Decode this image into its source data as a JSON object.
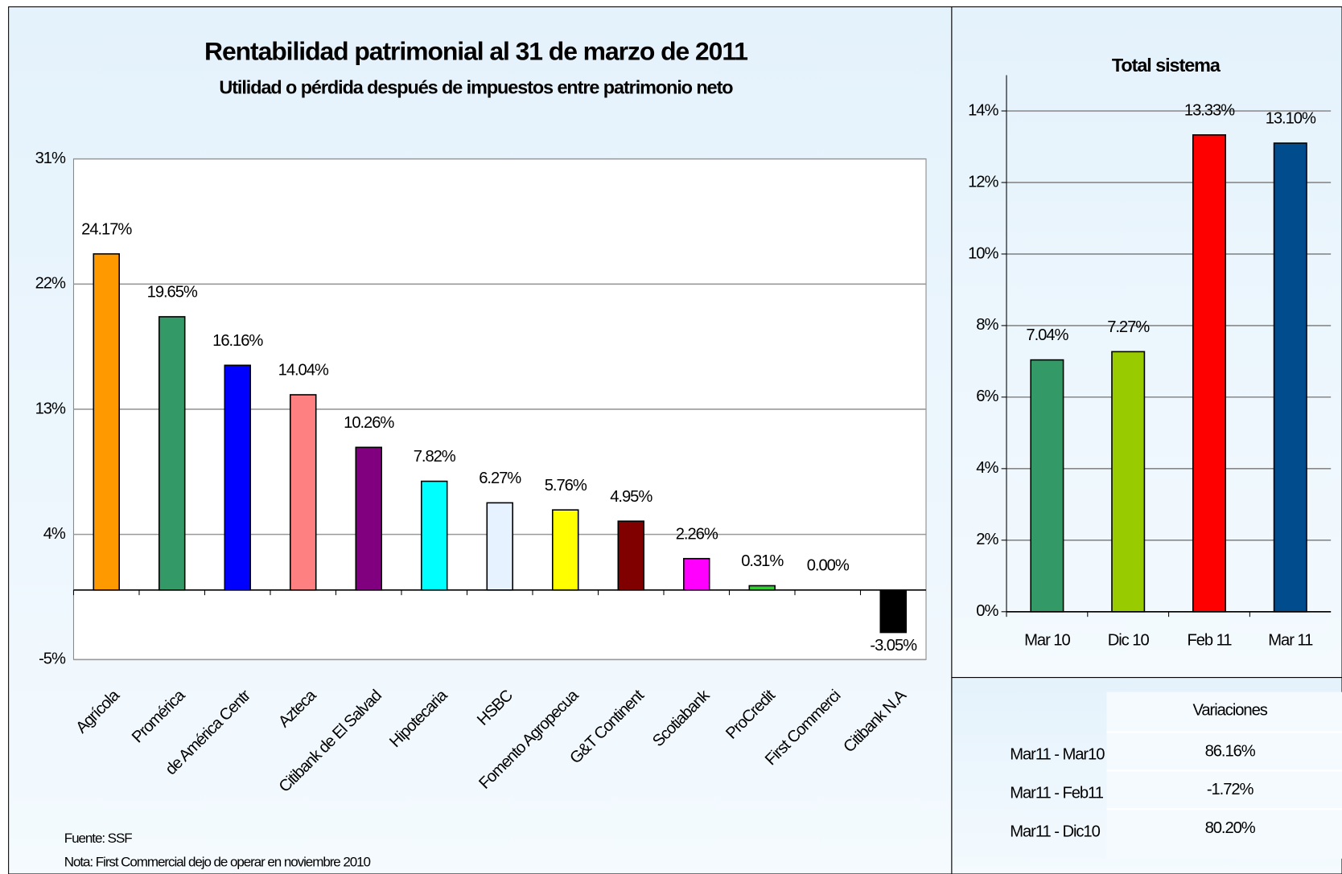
{
  "chart_data": [
    {
      "type": "bar",
      "title": "Rentabilidad patrimonial al 31 de marzo de 2011",
      "subtitle": "Utilidad o pérdida después de impuestos entre patrimonio neto",
      "categories": [
        "Agrícola",
        "Promérica",
        "de América Centr",
        "Azteca",
        "Citibank de El Salvad",
        "Hipotecaria",
        "HSBC",
        "Fomento Agropecua",
        "G&T Continent",
        "Scotiabank",
        "ProCredit",
        "First Commerci",
        "Citibank N.A"
      ],
      "values": [
        24.17,
        19.65,
        16.16,
        14.04,
        10.26,
        7.82,
        6.27,
        5.76,
        4.95,
        2.26,
        0.31,
        0.0,
        -3.05
      ],
      "value_labels": [
        "24.17%",
        "19.65%",
        "16.16%",
        "14.04%",
        "10.26%",
        "7.82%",
        "6.27%",
        "5.76%",
        "4.95%",
        "2.26%",
        "0.31%",
        "0.00%",
        "-3.05%"
      ],
      "colors": [
        "#FF9900",
        "#339966",
        "#0000FF",
        "#FF8080",
        "#800080",
        "#00FFFF",
        "#E6F2FF",
        "#FFFF00",
        "#800000",
        "#FF00FF",
        "#33CC33",
        "#FFFFFF",
        "#000000"
      ],
      "ylim": [
        -5,
        31
      ],
      "yticks": [
        {
          "value": -5,
          "label": "-5%"
        },
        {
          "value": 4,
          "label": "4%"
        },
        {
          "value": 13,
          "label": "13%"
        },
        {
          "value": 22,
          "label": "22%"
        },
        {
          "value": 31,
          "label": "31%"
        }
      ],
      "grid": true,
      "notes": [
        "Fuente: SSF",
        "Nota: First Commercial dejo de operar en noviembre 2010"
      ]
    },
    {
      "type": "bar",
      "title": "Total sistema",
      "categories": [
        "Mar 10",
        "Dic 10",
        "Feb 11",
        "Mar 11"
      ],
      "values": [
        7.04,
        7.27,
        13.33,
        13.1
      ],
      "value_labels": [
        "7.04%",
        "7.27%",
        "13.33%",
        "13.10%"
      ],
      "colors": [
        "#339966",
        "#99CC00",
        "#FF0000",
        "#004C8C"
      ],
      "ylim": [
        0,
        15
      ],
      "yticks": [
        {
          "value": 0,
          "label": "0%"
        },
        {
          "value": 2,
          "label": "2%"
        },
        {
          "value": 4,
          "label": "4%"
        },
        {
          "value": 6,
          "label": "6%"
        },
        {
          "value": 8,
          "label": "8%"
        },
        {
          "value": 10,
          "label": "10%"
        },
        {
          "value": 12,
          "label": "12%"
        },
        {
          "value": 14,
          "label": "14%"
        }
      ],
      "grid": true
    }
  ],
  "table": {
    "header": "Variaciones",
    "rows": [
      [
        "Mar11 - Mar10",
        "86.16%"
      ],
      [
        "Mar11 - Feb11",
        "-1.72%"
      ],
      [
        "Mar11 - Dic10",
        "80.20%"
      ]
    ]
  }
}
